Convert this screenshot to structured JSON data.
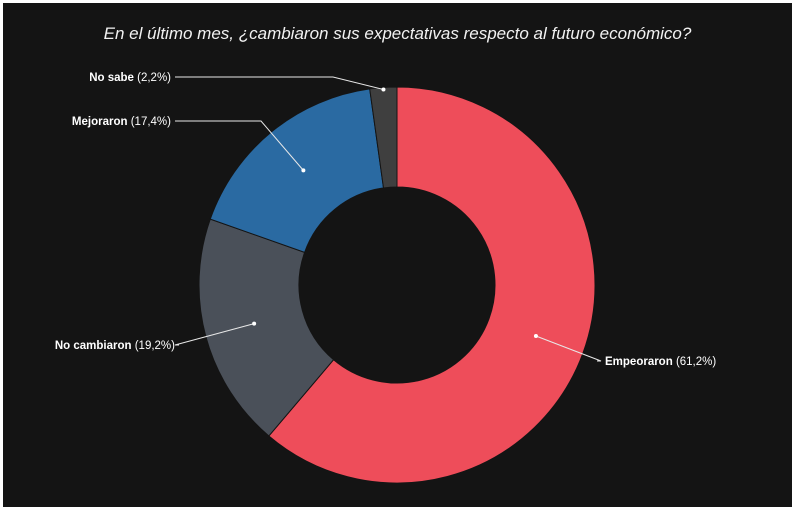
{
  "chart_data": {
    "type": "pie",
    "title": "En el último mes, ¿cambiaron sus expectativas respecto al futuro económico?",
    "donut": true,
    "slices": [
      {
        "label": "Empeoraron",
        "value": 61.2,
        "value_text": "(61,2%)",
        "color": "#ee4d5a"
      },
      {
        "label": "No cambiaron",
        "value": 19.2,
        "value_text": "(19,2%)",
        "color": "#4a5059"
      },
      {
        "label": "Mejoraron",
        "value": 17.4,
        "value_text": "(17,4%)",
        "color": "#2a6aa2"
      },
      {
        "label": "No sabe",
        "value": 2.2,
        "value_text": "(2,2%)",
        "color": "#3f3f3f"
      }
    ]
  }
}
